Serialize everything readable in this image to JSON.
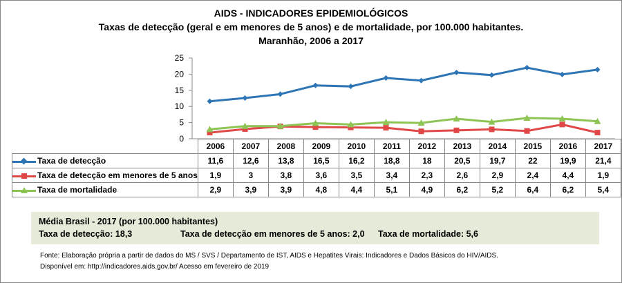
{
  "chart_data": {
    "type": "line",
    "title": "AIDS - INDICADORES EPIDEMIOLÓGICOS",
    "subtitle": "Taxas de detecção (geral e em menores de 5 anos) e de mortalidade, por 100.000 habitantes.",
    "subtitle2": "Maranhão, 2006 a 2017",
    "categories": [
      "2006",
      "2007",
      "2008",
      "2009",
      "2010",
      "2011",
      "2012",
      "2013",
      "2014",
      "2015",
      "2016",
      "2017"
    ],
    "ylim": [
      0,
      25
    ],
    "yticks": [
      "0",
      "5",
      "10",
      "15",
      "20",
      "25"
    ],
    "grid": false,
    "legend": "data-table",
    "series": [
      {
        "name": "Taxa de detecção",
        "color": "#2e75b6",
        "marker": "diamond",
        "values": [
          11.6,
          12.6,
          13.8,
          16.5,
          16.2,
          18.8,
          18,
          20.5,
          19.7,
          22,
          19.9,
          21.4
        ],
        "labels": [
          "11,6",
          "12,6",
          "13,8",
          "16,5",
          "16,2",
          "18,8",
          "18",
          "20,5",
          "19,7",
          "22",
          "19,9",
          "21,4"
        ]
      },
      {
        "name": "Taxa de detecção em menores de 5 anos",
        "color": "#e04848",
        "marker": "square",
        "values": [
          1.9,
          3,
          3.8,
          3.6,
          3.5,
          3.4,
          2.3,
          2.6,
          2.9,
          2.4,
          4.4,
          1.9
        ],
        "labels": [
          "1,9",
          "3",
          "3,8",
          "3,6",
          "3,5",
          "3,4",
          "2,3",
          "2,6",
          "2,9",
          "2,4",
          "4,4",
          "1,9"
        ]
      },
      {
        "name": "Taxa de mortalidade",
        "color": "#8dc454",
        "marker": "triangle",
        "values": [
          2.9,
          3.9,
          3.9,
          4.8,
          4.4,
          5.1,
          4.9,
          6.2,
          5.2,
          6.4,
          6.2,
          5.4
        ],
        "labels": [
          "2,9",
          "3,9",
          "3,9",
          "4,8",
          "4,4",
          "5,1",
          "4,9",
          "6,2",
          "5,2",
          "6,4",
          "6,2",
          "5,4"
        ]
      }
    ]
  },
  "average": {
    "title": "Média Brasil - 2017  (por 100.000 habitantes)",
    "detection": "Taxa de detecção: 18,3",
    "under5": "Taxa de detecção em menores de 5 anos: 2,0",
    "mortality": "Taxa de mortalidade: 5,6"
  },
  "source": {
    "line1": "Fonte: Elaboração própria a partir de dados do MS / SVS / Departamento de IST, AIDS e Hepatites Virais: Indicadores e Dados Básicos do HIV/AIDS.",
    "line2": "Disponível em: http://indicadores.aids.gov.br/   Acesso em fevereiro de 2019"
  }
}
